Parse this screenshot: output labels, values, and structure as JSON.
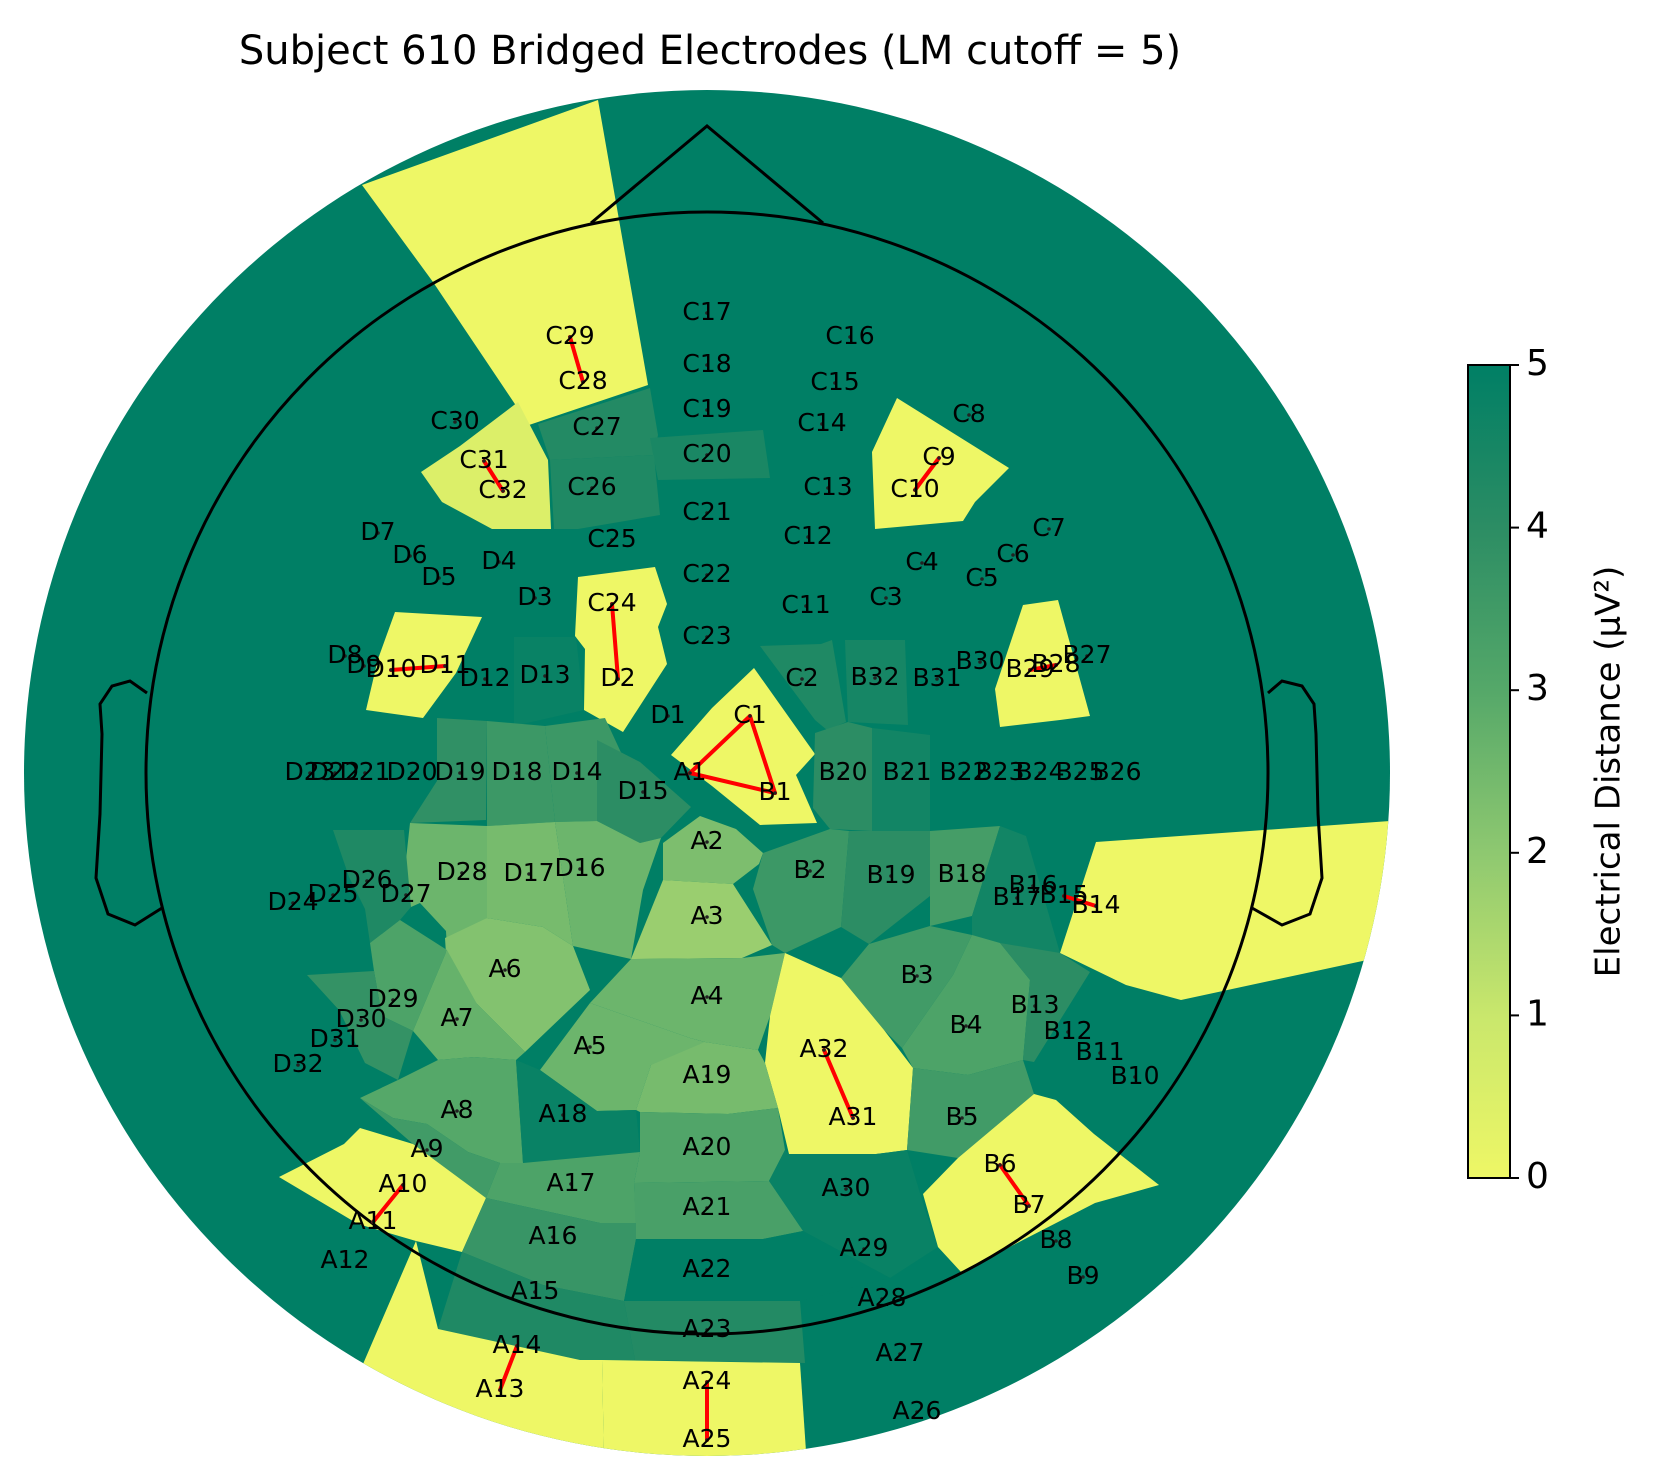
{
  "chart_data": {
    "type": "heatmap",
    "title": "Subject 610 Bridged Electrodes (LM cutoff = 5)",
    "colorbar": {
      "label": "Electrical Distance (μV²)",
      "range": [
        0,
        5
      ],
      "ticks": [
        "0",
        "1",
        "2",
        "3",
        "4",
        "5"
      ],
      "colors": [
        "#eef766",
        "#c9e76c",
        "#8ec870",
        "#55a869",
        "#2c8d64",
        "#007f65"
      ]
    },
    "bridge_color": "#ff0000",
    "electrodes": [
      {
        "name": "A1",
        "value": 0.0
      },
      {
        "name": "A2",
        "value": 2.3
      },
      {
        "name": "A3",
        "value": 1.8
      },
      {
        "name": "A4",
        "value": 2.6
      },
      {
        "name": "A5",
        "value": 2.6
      },
      {
        "name": "A6",
        "value": 2.2
      },
      {
        "name": "A7",
        "value": 2.7
      },
      {
        "name": "A8",
        "value": 3.0
      },
      {
        "name": "A9",
        "value": 3.5
      },
      {
        "name": "A10",
        "value": 0.0
      },
      {
        "name": "A11",
        "value": 0.0
      },
      {
        "name": "A12",
        "value": 5.0
      },
      {
        "name": "A13",
        "value": 0.0
      },
      {
        "name": "A14",
        "value": 0.0
      },
      {
        "name": "A15",
        "value": 4.3
      },
      {
        "name": "A16",
        "value": 3.7
      },
      {
        "name": "A17",
        "value": 3.2
      },
      {
        "name": "A18",
        "value": 4.8
      },
      {
        "name": "A19",
        "value": 2.4
      },
      {
        "name": "A20",
        "value": 3.1
      },
      {
        "name": "A21",
        "value": 3.3
      },
      {
        "name": "A22",
        "value": 5.0
      },
      {
        "name": "A23",
        "value": 4.2
      },
      {
        "name": "A24",
        "value": 0.0
      },
      {
        "name": "A25",
        "value": 0.0
      },
      {
        "name": "A26",
        "value": 5.0
      },
      {
        "name": "A27",
        "value": 5.0
      },
      {
        "name": "A28",
        "value": 5.0
      },
      {
        "name": "A29",
        "value": 5.0
      },
      {
        "name": "A30",
        "value": 4.8
      },
      {
        "name": "A31",
        "value": 0.0
      },
      {
        "name": "A32",
        "value": 0.0
      },
      {
        "name": "B1",
        "value": 0.0
      },
      {
        "name": "B2",
        "value": 3.6
      },
      {
        "name": "B3",
        "value": 3.5
      },
      {
        "name": "B4",
        "value": 3.2
      },
      {
        "name": "B5",
        "value": 3.5
      },
      {
        "name": "B6",
        "value": 0.0
      },
      {
        "name": "B7",
        "value": 0.0
      },
      {
        "name": "B8",
        "value": 5.0
      },
      {
        "name": "B9",
        "value": 5.0
      },
      {
        "name": "B10",
        "value": 5.0
      },
      {
        "name": "B11",
        "value": 5.0
      },
      {
        "name": "B12",
        "value": 5.0
      },
      {
        "name": "B13",
        "value": 4.0
      },
      {
        "name": "B14",
        "value": 0.0
      },
      {
        "name": "B15",
        "value": 0.0
      },
      {
        "name": "B16",
        "value": 0.0
      },
      {
        "name": "B17",
        "value": 4.6
      },
      {
        "name": "B18",
        "value": 3.4
      },
      {
        "name": "B19",
        "value": 4.0
      },
      {
        "name": "B20",
        "value": 4.0
      },
      {
        "name": "B21",
        "value": 4.6
      },
      {
        "name": "B22",
        "value": 5.0
      },
      {
        "name": "B23",
        "value": 5.0
      },
      {
        "name": "B24",
        "value": 5.0
      },
      {
        "name": "B25",
        "value": 5.0
      },
      {
        "name": "B26",
        "value": 5.0
      },
      {
        "name": "B27",
        "value": 0.0
      },
      {
        "name": "B28",
        "value": 0.0
      },
      {
        "name": "B29",
        "value": 0.0
      },
      {
        "name": "B30",
        "value": 5.0
      },
      {
        "name": "B31",
        "value": 4.7
      },
      {
        "name": "B32",
        "value": 4.5
      },
      {
        "name": "C1",
        "value": 0.0
      },
      {
        "name": "C2",
        "value": 4.3
      },
      {
        "name": "C3",
        "value": 5.0
      },
      {
        "name": "C4",
        "value": 5.0
      },
      {
        "name": "C5",
        "value": 5.0
      },
      {
        "name": "C6",
        "value": 5.0
      },
      {
        "name": "C7",
        "value": 5.0
      },
      {
        "name": "C8",
        "value": 5.0
      },
      {
        "name": "C9",
        "value": 0.0
      },
      {
        "name": "C10",
        "value": 0.0
      },
      {
        "name": "C11",
        "value": 5.0
      },
      {
        "name": "C12",
        "value": 5.0
      },
      {
        "name": "C13",
        "value": 5.0
      },
      {
        "name": "C14",
        "value": 5.0
      },
      {
        "name": "C15",
        "value": 5.0
      },
      {
        "name": "C16",
        "value": 5.0
      },
      {
        "name": "C17",
        "value": 5.0
      },
      {
        "name": "C18",
        "value": 5.0
      },
      {
        "name": "C19",
        "value": 5.0
      },
      {
        "name": "C20",
        "value": 4.4
      },
      {
        "name": "C21",
        "value": 5.0
      },
      {
        "name": "C22",
        "value": 5.0
      },
      {
        "name": "C23",
        "value": 5.0
      },
      {
        "name": "C24",
        "value": 0.0
      },
      {
        "name": "C25",
        "value": 5.0
      },
      {
        "name": "C26",
        "value": 4.3
      },
      {
        "name": "C27",
        "value": 4.2
      },
      {
        "name": "C28",
        "value": 0.0
      },
      {
        "name": "C29",
        "value": 0.0
      },
      {
        "name": "C30",
        "value": 5.0
      },
      {
        "name": "C31",
        "value": 0.5
      },
      {
        "name": "C32",
        "value": 0.5
      },
      {
        "name": "D1",
        "value": 5.0
      },
      {
        "name": "D2",
        "value": 0.0
      },
      {
        "name": "D3",
        "value": 5.0
      },
      {
        "name": "D4",
        "value": 5.0
      },
      {
        "name": "D5",
        "value": 5.0
      },
      {
        "name": "D6",
        "value": 5.0
      },
      {
        "name": "D7",
        "value": 5.0
      },
      {
        "name": "D8",
        "value": 0.0
      },
      {
        "name": "D9",
        "value": 0.0
      },
      {
        "name": "D10",
        "value": 0.0
      },
      {
        "name": "D11",
        "value": 0.0
      },
      {
        "name": "D12",
        "value": 5.0
      },
      {
        "name": "D13",
        "value": 4.8
      },
      {
        "name": "D14",
        "value": 3.6
      },
      {
        "name": "D15",
        "value": 4.0
      },
      {
        "name": "D16",
        "value": 2.6
      },
      {
        "name": "D17",
        "value": 2.4
      },
      {
        "name": "D18",
        "value": 3.6
      },
      {
        "name": "D19",
        "value": 3.9
      },
      {
        "name": "D20",
        "value": 5.0
      },
      {
        "name": "D21",
        "value": 5.0
      },
      {
        "name": "D22",
        "value": 5.0
      },
      {
        "name": "D23",
        "value": 5.0
      },
      {
        "name": "D24",
        "value": 5.0
      },
      {
        "name": "D25",
        "value": 5.0
      },
      {
        "name": "D26",
        "value": 4.3
      },
      {
        "name": "D27",
        "value": 3.9
      },
      {
        "name": "D28",
        "value": 2.6
      },
      {
        "name": "D29",
        "value": 3.2
      },
      {
        "name": "D30",
        "value": 3.9
      },
      {
        "name": "D31",
        "value": 3.8
      },
      {
        "name": "D32",
        "value": 5.0
      }
    ],
    "bridged_pairs": [
      [
        "C29",
        "C28"
      ],
      [
        "C31",
        "C32"
      ],
      [
        "C9",
        "C10"
      ],
      [
        "C24",
        "D2"
      ],
      [
        "D10",
        "D11"
      ],
      [
        "B29",
        "B28"
      ],
      [
        "C1",
        "A1"
      ],
      [
        "A1",
        "B1"
      ],
      [
        "C1",
        "B1"
      ],
      [
        "B15",
        "B14"
      ],
      [
        "A32",
        "A31"
      ],
      [
        "B6",
        "B7"
      ],
      [
        "A10",
        "A11"
      ],
      [
        "A14",
        "A13"
      ],
      [
        "A24",
        "A25"
      ]
    ]
  }
}
